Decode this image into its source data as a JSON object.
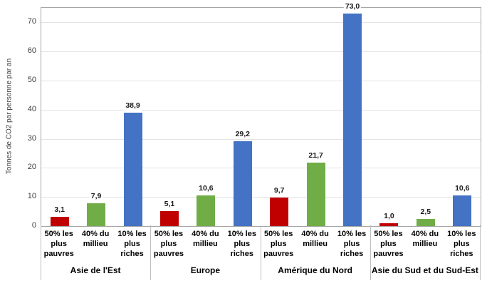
{
  "chart_data": {
    "type": "bar",
    "title": "",
    "ylabel": "Tonnes de CO2 par personne par an",
    "xlabel": "",
    "ylim": [
      0,
      75
    ],
    "yticks": [
      0,
      10,
      20,
      30,
      40,
      50,
      60,
      70
    ],
    "grid": true,
    "legend_position": "none",
    "decimal_separator": ",",
    "categories": [
      "50% les plus pauvres",
      "40% du millieu",
      "10% les plus riches"
    ],
    "series_colors": [
      "#C00000",
      "#70AD47",
      "#4472C4"
    ],
    "groups": [
      {
        "label": "Asie de l'Est",
        "values": [
          3.1,
          7.9,
          38.9
        ],
        "value_labels": [
          "3,1",
          "7,9",
          "38,9"
        ]
      },
      {
        "label": "Europe",
        "values": [
          5.1,
          10.6,
          29.2
        ],
        "value_labels": [
          "5,1",
          "10,6",
          "29,2"
        ]
      },
      {
        "label": "Amérique du Nord",
        "values": [
          9.7,
          21.7,
          73.0
        ],
        "value_labels": [
          "9,7",
          "21,7",
          "73,0"
        ]
      },
      {
        "label": "Asie du Sud et du Sud-Est",
        "values": [
          1.0,
          2.5,
          10.6
        ],
        "value_labels": [
          "1,0",
          "2,5",
          "10,6"
        ]
      }
    ]
  }
}
